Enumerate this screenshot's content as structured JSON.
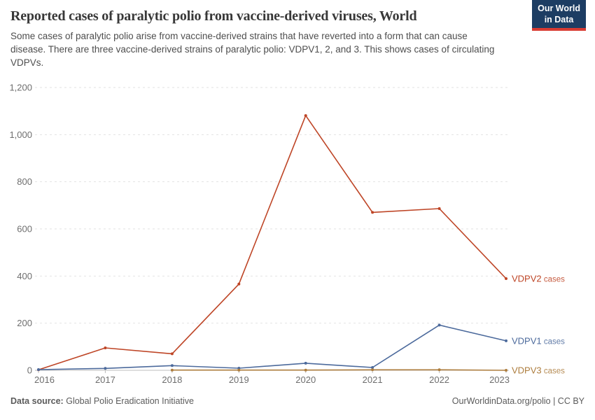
{
  "header": {
    "title": "Reported cases of paralytic polio from vaccine-derived viruses, World",
    "subtitle": "Some cases of paralytic polio arise from vaccine-derived strains that have reverted into a form that can cause disease. There are three vaccine-derived strains of paralytic polio: VDPV1, 2, and 3. This shows cases of circulating VDPVs.",
    "logo": {
      "line1": "Our World",
      "line2": "in Data",
      "bg_color": "#1D3D63",
      "bar_color": "#D93B32"
    }
  },
  "chart_data": {
    "type": "line",
    "title": "Reported cases of paralytic polio from vaccine-derived viruses, World",
    "x": [
      2016,
      2017,
      2018,
      2019,
      2020,
      2021,
      2022,
      2023
    ],
    "series": [
      {
        "name": "VDPV2",
        "label_suffix": "cases",
        "color": "#BE4526",
        "values": [
          2,
          95,
          70,
          366,
          1081,
          670,
          686,
          389
        ]
      },
      {
        "name": "VDPV1",
        "label_suffix": "cases",
        "color": "#4C6A9C",
        "values": [
          3,
          8,
          20,
          9,
          30,
          12,
          192,
          125
        ]
      },
      {
        "name": "VDPV3",
        "label_suffix": "cases",
        "color": "#AD7D3E",
        "values": [
          null,
          null,
          1,
          1,
          1,
          2,
          2,
          0
        ]
      }
    ],
    "ylim": [
      0,
      1200
    ],
    "yticks": [
      0,
      200,
      400,
      600,
      800,
      1000,
      1200
    ],
    "grid": "horizontal-dashed",
    "legend_position": "right-of-line-ends",
    "xlabel": "",
    "ylabel": ""
  },
  "footer": {
    "source_label": "Data source:",
    "source_value": "Global Polio Eradication Initiative",
    "attribution": "OurWorldinData.org/polio | CC BY"
  }
}
